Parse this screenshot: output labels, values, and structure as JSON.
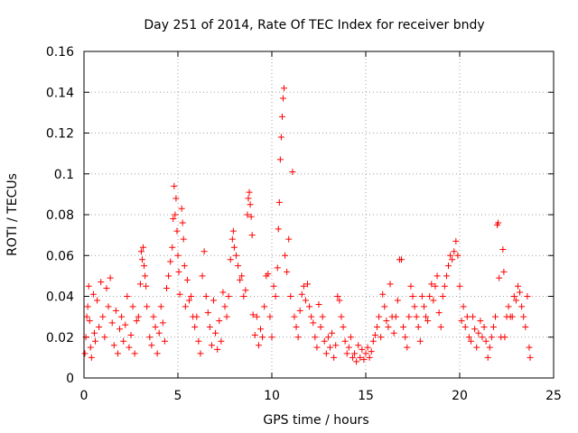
{
  "chart_data": {
    "type": "scatter",
    "title": "Day 251 of 2014, Rate Of TEC Index for receiver bndy",
    "xlabel": "GPS time / hours",
    "ylabel": "ROTI / TECUs",
    "xlim": [
      0,
      25
    ],
    "ylim": [
      0,
      0.16
    ],
    "xticks": [
      0,
      5,
      10,
      15,
      20,
      25
    ],
    "xtick_labels": [
      "0",
      "5",
      "10",
      "15",
      "20",
      "25"
    ],
    "yticks": [
      0,
      0.02,
      0.04,
      0.06,
      0.08,
      0.1,
      0.12,
      0.14,
      0.16
    ],
    "ytick_labels": [
      "0",
      "0.02",
      "0.04",
      "0.06",
      "0.08",
      "0.1",
      "0.12",
      "0.14",
      "0.16"
    ],
    "grid": true,
    "marker": "+",
    "marker_color": "#ff0000",
    "series": [
      {
        "name": "ROTI",
        "points": [
          [
            0.05,
            0.012
          ],
          [
            0.1,
            0.02
          ],
          [
            0.15,
            0.03
          ],
          [
            0.2,
            0.035
          ],
          [
            0.25,
            0.045
          ],
          [
            0.3,
            0.028
          ],
          [
            0.35,
            0.015
          ],
          [
            0.4,
            0.01
          ],
          [
            0.5,
            0.041
          ],
          [
            0.55,
            0.022
          ],
          [
            0.6,
            0.018
          ],
          [
            0.7,
            0.038
          ],
          [
            0.8,
            0.025
          ],
          [
            0.9,
            0.047
          ],
          [
            1.0,
            0.03
          ],
          [
            1.1,
            0.02
          ],
          [
            1.2,
            0.044
          ],
          [
            1.3,
            0.035
          ],
          [
            1.4,
            0.049
          ],
          [
            1.5,
            0.027
          ],
          [
            1.6,
            0.016
          ],
          [
            1.7,
            0.033
          ],
          [
            1.8,
            0.012
          ],
          [
            1.9,
            0.024
          ],
          [
            2.0,
            0.03
          ],
          [
            2.1,
            0.018
          ],
          [
            2.2,
            0.026
          ],
          [
            2.3,
            0.04
          ],
          [
            2.4,
            0.015
          ],
          [
            2.5,
            0.021
          ],
          [
            2.6,
            0.035
          ],
          [
            2.7,
            0.012
          ],
          [
            2.8,
            0.028
          ],
          [
            2.9,
            0.03
          ],
          [
            3.0,
            0.046
          ],
          [
            3.05,
            0.062
          ],
          [
            3.1,
            0.058
          ],
          [
            3.15,
            0.064
          ],
          [
            3.2,
            0.055
          ],
          [
            3.25,
            0.05
          ],
          [
            3.3,
            0.045
          ],
          [
            3.35,
            0.035
          ],
          [
            3.5,
            0.02
          ],
          [
            3.6,
            0.016
          ],
          [
            3.7,
            0.03
          ],
          [
            3.8,
            0.025
          ],
          [
            3.9,
            0.012
          ],
          [
            4.0,
            0.022
          ],
          [
            4.1,
            0.035
          ],
          [
            4.2,
            0.027
          ],
          [
            4.3,
            0.018
          ],
          [
            4.4,
            0.044
          ],
          [
            4.5,
            0.05
          ],
          [
            4.6,
            0.057
          ],
          [
            4.7,
            0.064
          ],
          [
            4.75,
            0.078
          ],
          [
            4.8,
            0.094
          ],
          [
            4.85,
            0.08
          ],
          [
            4.9,
            0.088
          ],
          [
            4.95,
            0.072
          ],
          [
            5.0,
            0.06
          ],
          [
            5.05,
            0.052
          ],
          [
            5.1,
            0.041
          ],
          [
            5.2,
            0.083
          ],
          [
            5.25,
            0.076
          ],
          [
            5.3,
            0.068
          ],
          [
            5.35,
            0.055
          ],
          [
            5.4,
            0.035
          ],
          [
            5.5,
            0.048
          ],
          [
            5.6,
            0.038
          ],
          [
            5.7,
            0.04
          ],
          [
            5.8,
            0.03
          ],
          [
            5.9,
            0.025
          ],
          [
            6.0,
            0.03
          ],
          [
            6.1,
            0.018
          ],
          [
            6.2,
            0.012
          ],
          [
            6.3,
            0.05
          ],
          [
            6.4,
            0.062
          ],
          [
            6.5,
            0.04
          ],
          [
            6.6,
            0.032
          ],
          [
            6.7,
            0.025
          ],
          [
            6.8,
            0.016
          ],
          [
            6.9,
            0.038
          ],
          [
            7.0,
            0.022
          ],
          [
            7.1,
            0.014
          ],
          [
            7.2,
            0.028
          ],
          [
            7.3,
            0.018
          ],
          [
            7.4,
            0.042
          ],
          [
            7.5,
            0.035
          ],
          [
            7.6,
            0.03
          ],
          [
            7.7,
            0.04
          ],
          [
            7.8,
            0.058
          ],
          [
            7.9,
            0.068
          ],
          [
            7.95,
            0.072
          ],
          [
            8.0,
            0.064
          ],
          [
            8.1,
            0.06
          ],
          [
            8.2,
            0.055
          ],
          [
            8.3,
            0.048
          ],
          [
            8.4,
            0.05
          ],
          [
            8.5,
            0.04
          ],
          [
            8.6,
            0.043
          ],
          [
            8.7,
            0.08
          ],
          [
            8.75,
            0.088
          ],
          [
            8.8,
            0.091
          ],
          [
            8.85,
            0.085
          ],
          [
            8.9,
            0.079
          ],
          [
            8.95,
            0.07
          ],
          [
            9.0,
            0.031
          ],
          [
            9.1,
            0.021
          ],
          [
            9.2,
            0.03
          ],
          [
            9.3,
            0.016
          ],
          [
            9.4,
            0.024
          ],
          [
            9.5,
            0.02
          ],
          [
            9.6,
            0.035
          ],
          [
            9.7,
            0.05
          ],
          [
            9.8,
            0.051
          ],
          [
            9.9,
            0.03
          ],
          [
            10.0,
            0.02
          ],
          [
            10.1,
            0.045
          ],
          [
            10.2,
            0.04
          ],
          [
            10.3,
            0.054
          ],
          [
            10.35,
            0.073
          ],
          [
            10.4,
            0.086
          ],
          [
            10.45,
            0.107
          ],
          [
            10.5,
            0.118
          ],
          [
            10.55,
            0.128
          ],
          [
            10.6,
            0.137
          ],
          [
            10.65,
            0.142
          ],
          [
            10.7,
            0.06
          ],
          [
            10.8,
            0.052
          ],
          [
            10.9,
            0.068
          ],
          [
            11.0,
            0.04
          ],
          [
            11.1,
            0.101
          ],
          [
            11.2,
            0.03
          ],
          [
            11.3,
            0.025
          ],
          [
            11.4,
            0.02
          ],
          [
            11.5,
            0.033
          ],
          [
            11.6,
            0.041
          ],
          [
            11.7,
            0.045
          ],
          [
            11.8,
            0.038
          ],
          [
            11.9,
            0.046
          ],
          [
            12.0,
            0.035
          ],
          [
            12.1,
            0.03
          ],
          [
            12.2,
            0.027
          ],
          [
            12.3,
            0.02
          ],
          [
            12.4,
            0.015
          ],
          [
            12.5,
            0.036
          ],
          [
            12.6,
            0.025
          ],
          [
            12.7,
            0.03
          ],
          [
            12.8,
            0.018
          ],
          [
            12.9,
            0.012
          ],
          [
            13.0,
            0.02
          ],
          [
            13.1,
            0.015
          ],
          [
            13.2,
            0.022
          ],
          [
            13.3,
            0.01
          ],
          [
            13.4,
            0.016
          ],
          [
            13.5,
            0.04
          ],
          [
            13.6,
            0.038
          ],
          [
            13.7,
            0.03
          ],
          [
            13.8,
            0.025
          ],
          [
            13.9,
            0.018
          ],
          [
            14.0,
            0.012
          ],
          [
            14.1,
            0.015
          ],
          [
            14.2,
            0.02
          ],
          [
            14.3,
            0.01
          ],
          [
            14.4,
            0.012
          ],
          [
            14.5,
            0.008
          ],
          [
            14.6,
            0.016
          ],
          [
            14.7,
            0.01
          ],
          [
            14.8,
            0.014
          ],
          [
            14.9,
            0.009
          ],
          [
            15.0,
            0.012
          ],
          [
            15.1,
            0.015
          ],
          [
            15.2,
            0.01
          ],
          [
            15.3,
            0.013
          ],
          [
            15.4,
            0.018
          ],
          [
            15.5,
            0.021
          ],
          [
            15.6,
            0.025
          ],
          [
            15.7,
            0.03
          ],
          [
            15.8,
            0.02
          ],
          [
            15.9,
            0.041
          ],
          [
            16.0,
            0.035
          ],
          [
            16.1,
            0.028
          ],
          [
            16.2,
            0.025
          ],
          [
            16.3,
            0.046
          ],
          [
            16.4,
            0.03
          ],
          [
            16.5,
            0.022
          ],
          [
            16.6,
            0.03
          ],
          [
            16.7,
            0.038
          ],
          [
            16.8,
            0.058
          ],
          [
            16.9,
            0.058
          ],
          [
            17.0,
            0.025
          ],
          [
            17.1,
            0.02
          ],
          [
            17.2,
            0.015
          ],
          [
            17.3,
            0.03
          ],
          [
            17.4,
            0.045
          ],
          [
            17.5,
            0.04
          ],
          [
            17.6,
            0.035
          ],
          [
            17.7,
            0.03
          ],
          [
            17.8,
            0.025
          ],
          [
            17.9,
            0.018
          ],
          [
            18.0,
            0.04
          ],
          [
            18.1,
            0.035
          ],
          [
            18.2,
            0.03
          ],
          [
            18.3,
            0.028
          ],
          [
            18.4,
            0.04
          ],
          [
            18.5,
            0.046
          ],
          [
            18.6,
            0.038
          ],
          [
            18.7,
            0.045
          ],
          [
            18.8,
            0.05
          ],
          [
            18.9,
            0.032
          ],
          [
            19.0,
            0.025
          ],
          [
            19.1,
            0.04
          ],
          [
            19.2,
            0.045
          ],
          [
            19.3,
            0.05
          ],
          [
            19.4,
            0.055
          ],
          [
            19.5,
            0.06
          ],
          [
            19.6,
            0.058
          ],
          [
            19.7,
            0.062
          ],
          [
            19.8,
            0.067
          ],
          [
            19.9,
            0.06
          ],
          [
            20.0,
            0.045
          ],
          [
            20.1,
            0.028
          ],
          [
            20.2,
            0.035
          ],
          [
            20.3,
            0.025
          ],
          [
            20.4,
            0.03
          ],
          [
            20.5,
            0.02
          ],
          [
            20.6,
            0.018
          ],
          [
            20.7,
            0.03
          ],
          [
            20.8,
            0.024
          ],
          [
            20.9,
            0.015
          ],
          [
            21.0,
            0.022
          ],
          [
            21.1,
            0.028
          ],
          [
            21.2,
            0.02
          ],
          [
            21.3,
            0.025
          ],
          [
            21.4,
            0.018
          ],
          [
            21.5,
            0.01
          ],
          [
            21.6,
            0.015
          ],
          [
            21.7,
            0.02
          ],
          [
            21.8,
            0.025
          ],
          [
            21.9,
            0.03
          ],
          [
            22.0,
            0.075
          ],
          [
            22.05,
            0.076
          ],
          [
            22.1,
            0.049
          ],
          [
            22.2,
            0.02
          ],
          [
            22.3,
            0.063
          ],
          [
            22.35,
            0.052
          ],
          [
            22.4,
            0.02
          ],
          [
            22.5,
            0.03
          ],
          [
            22.6,
            0.035
          ],
          [
            22.7,
            0.03
          ],
          [
            22.8,
            0.03
          ],
          [
            22.9,
            0.04
          ],
          [
            23.0,
            0.038
          ],
          [
            23.1,
            0.045
          ],
          [
            23.2,
            0.042
          ],
          [
            23.3,
            0.035
          ],
          [
            23.4,
            0.03
          ],
          [
            23.5,
            0.025
          ],
          [
            23.6,
            0.04
          ],
          [
            23.7,
            0.015
          ],
          [
            23.75,
            0.01
          ]
        ]
      }
    ]
  }
}
